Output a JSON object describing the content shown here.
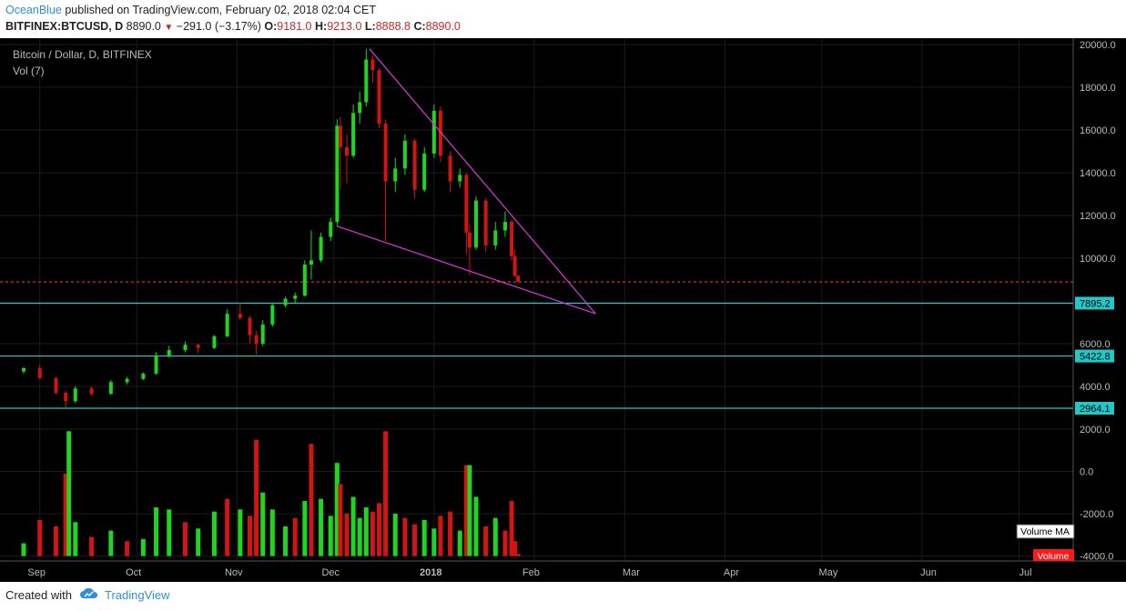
{
  "header": {
    "user": "OceanBlue",
    "published": "published on TradingView.com, February 02, 2018 02:04 CET",
    "symbol": "BITFINEX:BTCUSD, D",
    "price": "8890.0",
    "change": "−291.0 (−3.17%)",
    "o_label": "O:",
    "o_value": "9181.0",
    "h_label": "H:",
    "h_value": "9213.0",
    "l_label": "L:",
    "l_value": "8888.8",
    "c_label": "C:",
    "c_value": "8890.0"
  },
  "footer": {
    "created_with": "Created with",
    "brand": "TradingView"
  },
  "colors": {
    "background": "#000000",
    "up": "#1fd51f",
    "down": "#d11515",
    "trendline": "#d63ad6",
    "hline": "#22c8c8",
    "last_price": "#e53935",
    "vol_ma": "#ffffff",
    "volume": "#ff1a1a"
  },
  "chart_data": {
    "type": "candlestick",
    "title": "Bitcoin / Dollar, D, BITFINEX",
    "indicator": "Vol (7)",
    "x_labels": [
      "Sep",
      "Oct",
      "Nov",
      "Dec",
      "2018",
      "Feb",
      "Mar",
      "Apr",
      "May",
      "Jun",
      "Jul"
    ],
    "price_ticks": [
      "20000.0",
      "18000.0",
      "16000.0",
      "14000.0",
      "12000.0",
      "10000.0",
      "6000.0",
      "4000.0"
    ],
    "volume_ticks": [
      "2000.0",
      "0.0",
      "-2000.0",
      "-4000.0"
    ],
    "price_range": [
      2800,
      20300
    ],
    "volume_range": [
      -4000,
      2400
    ],
    "last_price": 8890,
    "horizontal_levels": [
      {
        "value": 7895.2,
        "label": "7895.2"
      },
      {
        "value": 5422.8,
        "label": "5422.8"
      },
      {
        "value": 2964.1,
        "label": "2964.1"
      }
    ],
    "trendlines": [
      {
        "from": [
          "2017-12-17",
          19800
        ],
        "to": [
          "2018-02-25",
          7400
        ]
      },
      {
        "from": [
          "2017-12-07",
          11500
        ],
        "to": [
          "2018-02-25",
          7400
        ]
      }
    ],
    "volume_legend": [
      "Volume MA",
      "Volume"
    ],
    "series": [
      {
        "date": "2017-09-01",
        "o": 4700,
        "h": 4900,
        "l": 4600,
        "c": 4850
      },
      {
        "date": "2017-09-06",
        "o": 4850,
        "h": 5000,
        "l": 4300,
        "c": 4400
      },
      {
        "date": "2017-09-11",
        "o": 4400,
        "h": 4450,
        "l": 3600,
        "c": 3700
      },
      {
        "date": "2017-09-14",
        "o": 3700,
        "h": 3800,
        "l": 2970,
        "c": 3300
      },
      {
        "date": "2017-09-17",
        "o": 3300,
        "h": 4000,
        "l": 3200,
        "c": 3900
      },
      {
        "date": "2017-09-22",
        "o": 3900,
        "h": 4000,
        "l": 3550,
        "c": 3650
      },
      {
        "date": "2017-09-28",
        "o": 3650,
        "h": 4300,
        "l": 3600,
        "c": 4200
      },
      {
        "date": "2017-10-03",
        "o": 4200,
        "h": 4450,
        "l": 4100,
        "c": 4350
      },
      {
        "date": "2017-10-08",
        "o": 4350,
        "h": 4650,
        "l": 4300,
        "c": 4600
      },
      {
        "date": "2017-10-12",
        "o": 4600,
        "h": 5600,
        "l": 4550,
        "c": 5450
      },
      {
        "date": "2017-10-16",
        "o": 5450,
        "h": 5900,
        "l": 5350,
        "c": 5700
      },
      {
        "date": "2017-10-21",
        "o": 5700,
        "h": 6100,
        "l": 5600,
        "c": 5950
      },
      {
        "date": "2017-10-25",
        "o": 5950,
        "h": 6000,
        "l": 5550,
        "c": 5800
      },
      {
        "date": "2017-10-30",
        "o": 5800,
        "h": 6400,
        "l": 5750,
        "c": 6350
      },
      {
        "date": "2017-11-03",
        "o": 6350,
        "h": 7600,
        "l": 6300,
        "c": 7400
      },
      {
        "date": "2017-11-07",
        "o": 7400,
        "h": 7900,
        "l": 7100,
        "c": 7200
      },
      {
        "date": "2017-11-10",
        "o": 7200,
        "h": 7300,
        "l": 6000,
        "c": 6400
      },
      {
        "date": "2017-11-12",
        "o": 6400,
        "h": 6600,
        "l": 5500,
        "c": 6000
      },
      {
        "date": "2017-11-14",
        "o": 6000,
        "h": 7100,
        "l": 5900,
        "c": 6900
      },
      {
        "date": "2017-11-17",
        "o": 6900,
        "h": 7900,
        "l": 6800,
        "c": 7800
      },
      {
        "date": "2017-11-21",
        "o": 7800,
        "h": 8200,
        "l": 7700,
        "c": 8100
      },
      {
        "date": "2017-11-24",
        "o": 8100,
        "h": 8400,
        "l": 7900,
        "c": 8250
      },
      {
        "date": "2017-11-27",
        "o": 8250,
        "h": 9900,
        "l": 8200,
        "c": 9700
      },
      {
        "date": "2017-11-29",
        "o": 9700,
        "h": 11300,
        "l": 9000,
        "c": 9900
      },
      {
        "date": "2017-12-02",
        "o": 9900,
        "h": 11200,
        "l": 9800,
        "c": 11000
      },
      {
        "date": "2017-12-05",
        "o": 11000,
        "h": 11900,
        "l": 10800,
        "c": 11700
      },
      {
        "date": "2017-12-07",
        "o": 11700,
        "h": 16500,
        "l": 11500,
        "c": 16200
      },
      {
        "date": "2017-12-08",
        "o": 16200,
        "h": 16600,
        "l": 13200,
        "c": 15200
      },
      {
        "date": "2017-12-10",
        "o": 15200,
        "h": 15800,
        "l": 13500,
        "c": 14800
      },
      {
        "date": "2017-12-12",
        "o": 14800,
        "h": 17200,
        "l": 14700,
        "c": 16800
      },
      {
        "date": "2017-12-14",
        "o": 16800,
        "h": 17800,
        "l": 16300,
        "c": 17300
      },
      {
        "date": "2017-12-16",
        "o": 17300,
        "h": 19800,
        "l": 17100,
        "c": 19300
      },
      {
        "date": "2017-12-18",
        "o": 19300,
        "h": 19500,
        "l": 18200,
        "c": 18800
      },
      {
        "date": "2017-12-20",
        "o": 18800,
        "h": 18900,
        "l": 16100,
        "c": 16300
      },
      {
        "date": "2017-12-22",
        "o": 16300,
        "h": 16500,
        "l": 10800,
        "c": 13600
      },
      {
        "date": "2017-12-25",
        "o": 13600,
        "h": 14700,
        "l": 13100,
        "c": 14200
      },
      {
        "date": "2017-12-28",
        "o": 14200,
        "h": 15800,
        "l": 13900,
        "c": 15500
      },
      {
        "date": "2017-12-31",
        "o": 15500,
        "h": 15600,
        "l": 12800,
        "c": 13200
      },
      {
        "date": "2018-01-03",
        "o": 13200,
        "h": 15200,
        "l": 13100,
        "c": 14900
      },
      {
        "date": "2018-01-06",
        "o": 14900,
        "h": 17200,
        "l": 14700,
        "c": 16900
      },
      {
        "date": "2018-01-08",
        "o": 16900,
        "h": 17100,
        "l": 14500,
        "c": 14800
      },
      {
        "date": "2018-01-11",
        "o": 14800,
        "h": 15000,
        "l": 13100,
        "c": 13600
      },
      {
        "date": "2018-01-14",
        "o": 13600,
        "h": 14200,
        "l": 13300,
        "c": 13900
      },
      {
        "date": "2018-01-16",
        "o": 13900,
        "h": 14000,
        "l": 10200,
        "c": 11200
      },
      {
        "date": "2018-01-17",
        "o": 11200,
        "h": 11600,
        "l": 9200,
        "c": 10500
      },
      {
        "date": "2018-01-19",
        "o": 10500,
        "h": 12900,
        "l": 10400,
        "c": 12700
      },
      {
        "date": "2018-01-22",
        "o": 12700,
        "h": 12800,
        "l": 10300,
        "c": 10600
      },
      {
        "date": "2018-01-25",
        "o": 10600,
        "h": 11700,
        "l": 10400,
        "c": 11300
      },
      {
        "date": "2018-01-28",
        "o": 11300,
        "h": 12200,
        "l": 11000,
        "c": 11700
      },
      {
        "date": "2018-01-30",
        "o": 11700,
        "h": 11800,
        "l": 9900,
        "c": 10100
      },
      {
        "date": "2018-01-31",
        "o": 10100,
        "h": 10400,
        "l": 9100,
        "c": 9181
      },
      {
        "date": "2018-02-01",
        "o": 9181,
        "h": 9213,
        "l": 8888.8,
        "c": 8890
      }
    ],
    "volume": [
      {
        "date": "2017-09-01",
        "v": -3400,
        "up": true
      },
      {
        "date": "2017-09-06",
        "v": -2300,
        "up": false
      },
      {
        "date": "2017-09-11",
        "v": -2600,
        "up": false
      },
      {
        "date": "2017-09-14",
        "v": -100,
        "up": false
      },
      {
        "date": "2017-09-15",
        "v": 1900,
        "up": true
      },
      {
        "date": "2017-09-17",
        "v": -2400,
        "up": true
      },
      {
        "date": "2017-09-22",
        "v": -3100,
        "up": false
      },
      {
        "date": "2017-09-28",
        "v": -2800,
        "up": true
      },
      {
        "date": "2017-10-03",
        "v": -3300,
        "up": false
      },
      {
        "date": "2017-10-08",
        "v": -3200,
        "up": true
      },
      {
        "date": "2017-10-12",
        "v": -1700,
        "up": true
      },
      {
        "date": "2017-10-16",
        "v": -1800,
        "up": true
      },
      {
        "date": "2017-10-21",
        "v": -2400,
        "up": false
      },
      {
        "date": "2017-10-25",
        "v": -2700,
        "up": true
      },
      {
        "date": "2017-10-30",
        "v": -1900,
        "up": true
      },
      {
        "date": "2017-11-03",
        "v": -1300,
        "up": false
      },
      {
        "date": "2017-11-07",
        "v": -1800,
        "up": true
      },
      {
        "date": "2017-11-10",
        "v": -2100,
        "up": false
      },
      {
        "date": "2017-11-12",
        "v": 1500,
        "up": false
      },
      {
        "date": "2017-11-14",
        "v": -1000,
        "up": true
      },
      {
        "date": "2017-11-17",
        "v": -1800,
        "up": true
      },
      {
        "date": "2017-11-21",
        "v": -2600,
        "up": true
      },
      {
        "date": "2017-11-24",
        "v": -2200,
        "up": false
      },
      {
        "date": "2017-11-27",
        "v": -1400,
        "up": true
      },
      {
        "date": "2017-11-29",
        "v": 1300,
        "up": false
      },
      {
        "date": "2017-12-02",
        "v": -1300,
        "up": true
      },
      {
        "date": "2017-12-05",
        "v": -2100,
        "up": true
      },
      {
        "date": "2017-12-07",
        "v": 400,
        "up": true
      },
      {
        "date": "2017-12-08",
        "v": -600,
        "up": false
      },
      {
        "date": "2017-12-10",
        "v": -2000,
        "up": false
      },
      {
        "date": "2017-12-12",
        "v": -1200,
        "up": true
      },
      {
        "date": "2017-12-14",
        "v": -2200,
        "up": true
      },
      {
        "date": "2017-12-16",
        "v": -1700,
        "up": true
      },
      {
        "date": "2017-12-18",
        "v": -1900,
        "up": false
      },
      {
        "date": "2017-12-20",
        "v": -1500,
        "up": false
      },
      {
        "date": "2017-12-22",
        "v": 1900,
        "up": false
      },
      {
        "date": "2017-12-25",
        "v": -2000,
        "up": true
      },
      {
        "date": "2017-12-28",
        "v": -2200,
        "up": false
      },
      {
        "date": "2017-12-31",
        "v": -2500,
        "up": false
      },
      {
        "date": "2018-01-03",
        "v": -2300,
        "up": true
      },
      {
        "date": "2018-01-06",
        "v": -2700,
        "up": true
      },
      {
        "date": "2018-01-08",
        "v": -2100,
        "up": false
      },
      {
        "date": "2018-01-11",
        "v": -1900,
        "up": false
      },
      {
        "date": "2018-01-14",
        "v": -2800,
        "up": true
      },
      {
        "date": "2018-01-16",
        "v": 300,
        "up": false
      },
      {
        "date": "2018-01-17",
        "v": 300,
        "up": true
      },
      {
        "date": "2018-01-19",
        "v": -1200,
        "up": true
      },
      {
        "date": "2018-01-22",
        "v": -2600,
        "up": false
      },
      {
        "date": "2018-01-25",
        "v": -2200,
        "up": true
      },
      {
        "date": "2018-01-28",
        "v": -2800,
        "up": false
      },
      {
        "date": "2018-01-30",
        "v": -1400,
        "up": false
      },
      {
        "date": "2018-01-31",
        "v": -3300,
        "up": false
      },
      {
        "date": "2018-02-01",
        "v": -3900,
        "up": false
      }
    ]
  }
}
